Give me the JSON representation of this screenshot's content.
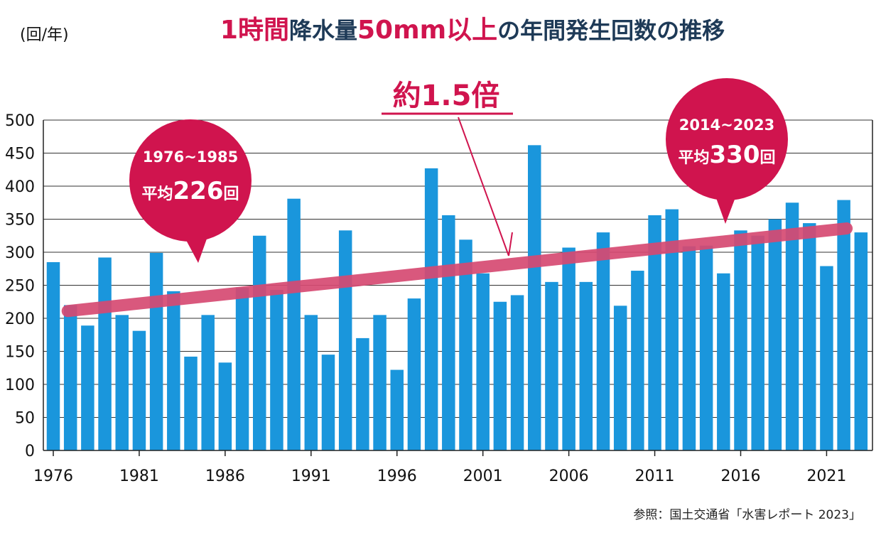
{
  "chart_data": {
    "type": "bar",
    "title_parts": [
      {
        "text": "1時間",
        "color": "#d0144e"
      },
      {
        "text": "降水量",
        "color": "#1e3a57"
      },
      {
        "text": "50mm以上",
        "color": "#d0144e"
      },
      {
        "text": "の年間発生回数の推移",
        "color": "#1e3a57"
      }
    ],
    "ylabel": "(回/年)",
    "ylim": [
      0,
      500
    ],
    "y_ticks": [
      0,
      50,
      100,
      150,
      200,
      250,
      300,
      350,
      400,
      450,
      500
    ],
    "x_tick_labels": [
      "1976",
      "1981",
      "1986",
      "1991",
      "1996",
      "2001",
      "2006",
      "2011",
      "2016",
      "2021"
    ],
    "grid": true,
    "categories": [
      "1976",
      "1977",
      "1978",
      "1979",
      "1980",
      "1981",
      "1982",
      "1983",
      "1984",
      "1985",
      "1986",
      "1987",
      "1988",
      "1989",
      "1990",
      "1991",
      "1992",
      "1993",
      "1994",
      "1995",
      "1996",
      "1997",
      "1998",
      "1999",
      "2000",
      "2001",
      "2002",
      "2003",
      "2004",
      "2005",
      "2006",
      "2007",
      "2008",
      "2009",
      "2010",
      "2011",
      "2012",
      "2013",
      "2014",
      "2015",
      "2016",
      "2017",
      "2018",
      "2019",
      "2020",
      "2021",
      "2022",
      "2023"
    ],
    "values": [
      285,
      220,
      189,
      292,
      205,
      181,
      299,
      241,
      142,
      205,
      133,
      246,
      325,
      243,
      381,
      205,
      145,
      333,
      170,
      205,
      122,
      230,
      427,
      356,
      319,
      268,
      225,
      235,
      462,
      255,
      307,
      255,
      330,
      219,
      272,
      356,
      365,
      309,
      310,
      268,
      333,
      325,
      350,
      375,
      344,
      279,
      379,
      330
    ],
    "bar_color": "#1a96dc",
    "trend": {
      "start_value": 211,
      "end_value": 336,
      "color": "#d64a72"
    },
    "multiplier_label": "約1.5倍",
    "bubbles": [
      {
        "years": "1976~1985",
        "avg_prefix": "平均",
        "avg_value": "226",
        "avg_suffix": "回"
      },
      {
        "years": "2014~2023",
        "avg_prefix": "平均",
        "avg_value": "330",
        "avg_suffix": "回"
      }
    ],
    "accent_color": "#d0144e",
    "source": "参照：国土交通省「水害レポート 2023」"
  }
}
